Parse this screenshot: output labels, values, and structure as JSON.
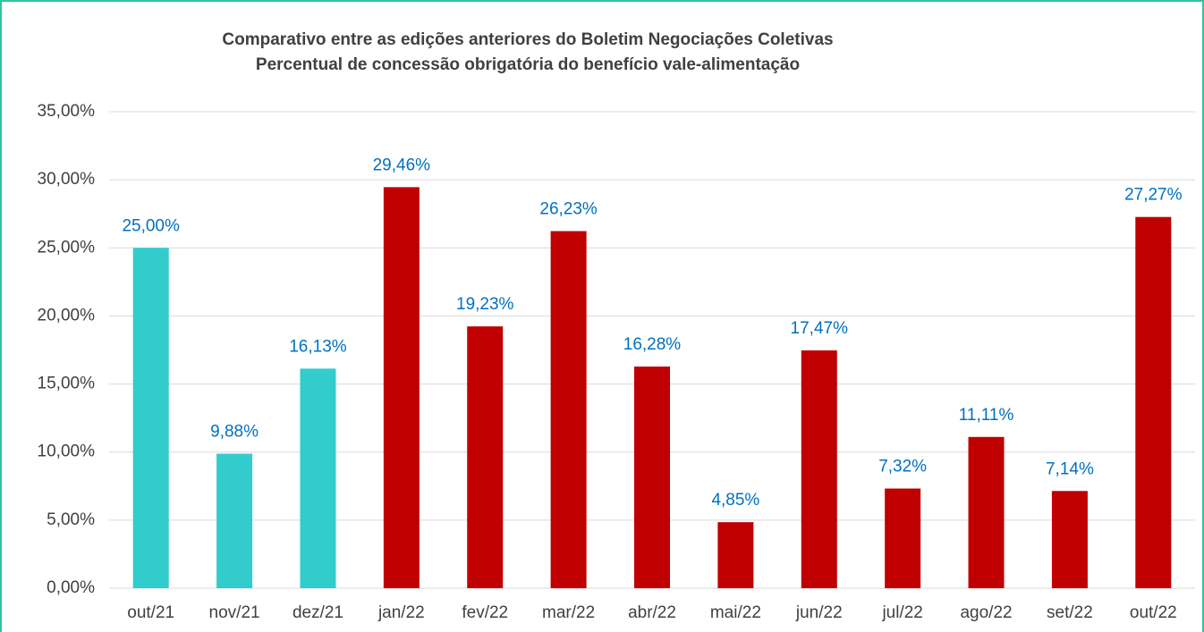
{
  "chart_data": {
    "type": "bar",
    "title": "Comparativo entre as edições anteriores do Boletim Negociações Coletivas",
    "subtitle": "Percentual de concessão obrigatória do benefício vale-alimentação",
    "categories": [
      "out/21",
      "nov/21",
      "dez/21",
      "jan/22",
      "fev/22",
      "mar/22",
      "abr/22",
      "mai/22",
      "jun/22",
      "jul/22",
      "ago/22",
      "set/22",
      "out/22"
    ],
    "values": [
      25.0,
      9.88,
      16.13,
      29.46,
      19.23,
      26.23,
      16.28,
      4.85,
      17.47,
      7.32,
      11.11,
      7.14,
      27.27
    ],
    "value_labels": [
      "25,00%",
      "9,88%",
      "16,13%",
      "29,46%",
      "19,23%",
      "26,23%",
      "16,28%",
      "4,85%",
      "17,47%",
      "7,32%",
      "11,11%",
      "7,14%",
      "27,27%"
    ],
    "colors": [
      "#33cccc",
      "#33cccc",
      "#33cccc",
      "#c00000",
      "#c00000",
      "#c00000",
      "#c00000",
      "#c00000",
      "#c00000",
      "#c00000",
      "#c00000",
      "#c00000",
      "#c00000"
    ],
    "label_color": "#0070c0",
    "ylim": [
      0,
      35
    ],
    "yticks": [
      {
        "value": 0,
        "label": "0,00%"
      },
      {
        "value": 5,
        "label": "5,00%"
      },
      {
        "value": 10,
        "label": "10,00%"
      },
      {
        "value": 15,
        "label": "15,00%"
      },
      {
        "value": 20,
        "label": "20,00%"
      },
      {
        "value": 25,
        "label": "25,00%"
      },
      {
        "value": 30,
        "label": "30,00%"
      },
      {
        "value": 35,
        "label": "35,00%"
      }
    ],
    "grid": true
  }
}
